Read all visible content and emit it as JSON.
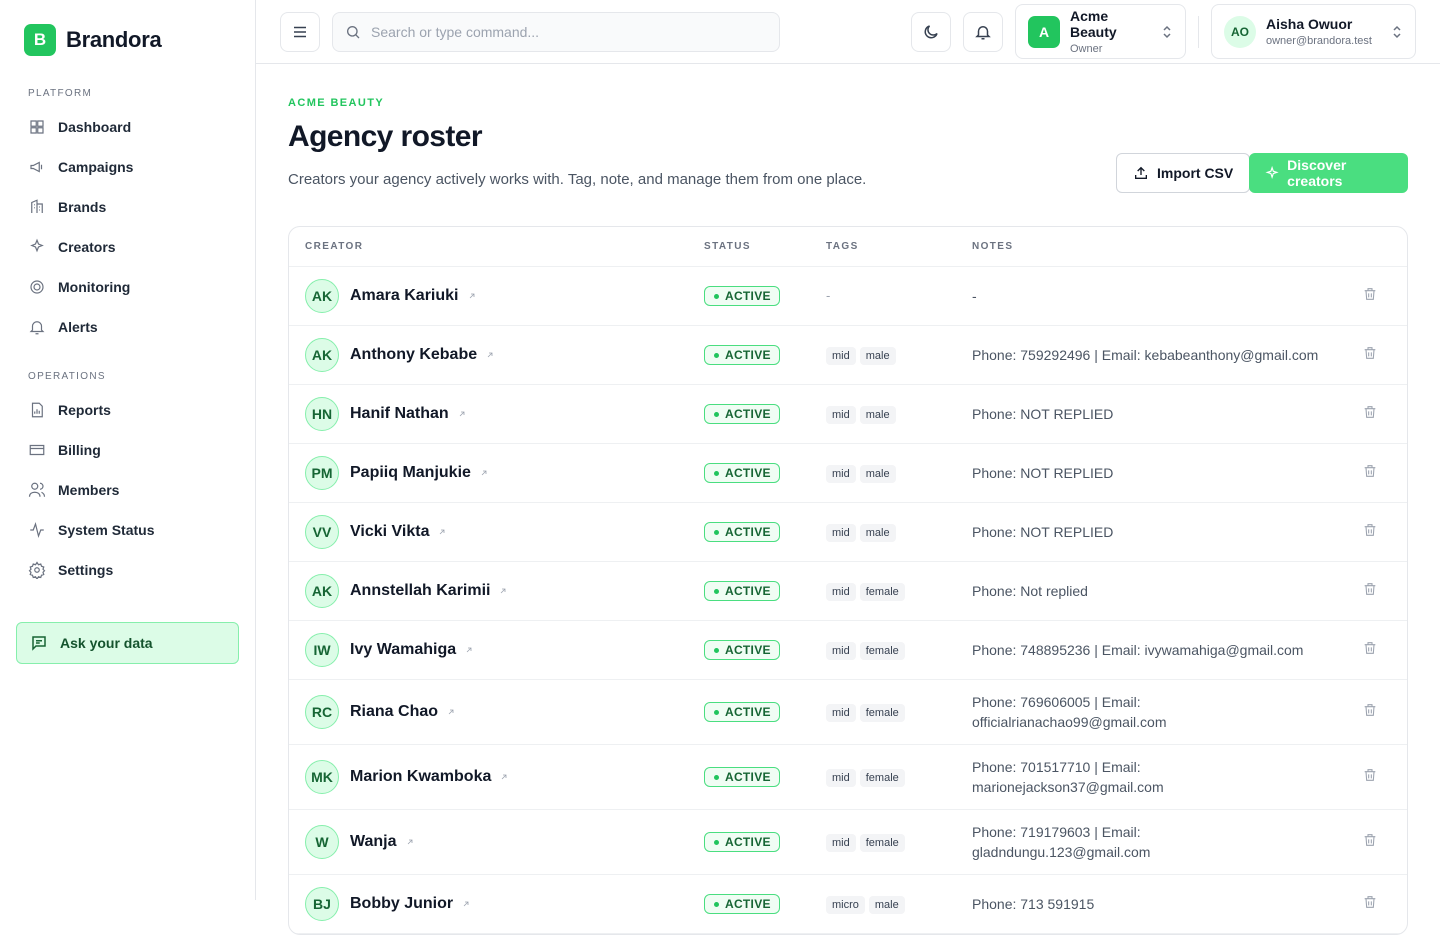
{
  "sidebar": {
    "brand_initial": "B",
    "brand": "Brandora",
    "sections": [
      {
        "title": "PLATFORM",
        "items": [
          "Dashboard",
          "Campaigns",
          "Brands",
          "Creators",
          "Monitoring",
          "Alerts"
        ]
      },
      {
        "title": "OPERATIONS",
        "items": [
          "Reports",
          "Billing",
          "Members",
          "System Status",
          "Settings"
        ]
      }
    ],
    "ask": "Ask your data"
  },
  "topbar": {
    "search_placeholder": "Search or type command...",
    "workspace": {
      "initial": "A",
      "name": "Acme Beauty",
      "role": "Owner"
    },
    "user": {
      "initials": "AO",
      "name": "Aisha Owuor",
      "email": "owner@brandora.test"
    }
  },
  "header": {
    "eyebrow": "ACME BEAUTY",
    "title": "Agency roster",
    "subtitle": "Creators your agency actively works with. Tag, note, and manage them from one place.",
    "import": "Import CSV",
    "discover": "Discover creators"
  },
  "table": {
    "columns": [
      "CREATOR",
      "STATUS",
      "TAGS",
      "NOTES"
    ],
    "rows": [
      {
        "initials": "AK",
        "name": "Amara Kariuki",
        "status": "ACTIVE",
        "tags": "-",
        "notes": "-"
      },
      {
        "initials": "AK",
        "name": "Anthony Kebabe",
        "status": "ACTIVE",
        "tags": [
          "mid",
          "male"
        ],
        "notes": "Phone: 759292496 | Email: kebabeanthony@gmail.com"
      },
      {
        "initials": "HN",
        "name": "Hanif Nathan",
        "status": "ACTIVE",
        "tags": [
          "mid",
          "male"
        ],
        "notes": "Phone: NOT REPLIED"
      },
      {
        "initials": "PM",
        "name": "Papiiq Manjukie",
        "status": "ACTIVE",
        "tags": [
          "mid",
          "male"
        ],
        "notes": "Phone: NOT REPLIED"
      },
      {
        "initials": "VV",
        "name": "Vicki Vikta",
        "status": "ACTIVE",
        "tags": [
          "mid",
          "male"
        ],
        "notes": "Phone: NOT REPLIED"
      },
      {
        "initials": "AK",
        "name": "Annstellah Karimii",
        "status": "ACTIVE",
        "tags": [
          "mid",
          "female"
        ],
        "notes": "Phone: Not replied"
      },
      {
        "initials": "IW",
        "name": "Ivy Wamahiga",
        "status": "ACTIVE",
        "tags": [
          "mid",
          "female"
        ],
        "notes": "Phone: 748895236 | Email: ivywamahiga@gmail.com"
      },
      {
        "initials": "RC",
        "name": "Riana Chao",
        "status": "ACTIVE",
        "tags": [
          "mid",
          "female"
        ],
        "notes": "Phone: 769606005 | Email: officialrianachao99@gmail.com"
      },
      {
        "initials": "MK",
        "name": "Marion Kwamboka",
        "status": "ACTIVE",
        "tags": [
          "mid",
          "female"
        ],
        "notes": "Phone: 701517710 | Email: marionejackson37@gmail.com"
      },
      {
        "initials": "W",
        "name": "Wanja",
        "status": "ACTIVE",
        "tags": [
          "mid",
          "female"
        ],
        "notes": "Phone: 719179603 | Email: gladndungu.123@gmail.com"
      },
      {
        "initials": "BJ",
        "name": "Bobby Junior",
        "status": "ACTIVE",
        "tags": [
          "micro",
          "male"
        ],
        "notes": "Phone: 713 591915"
      }
    ]
  }
}
